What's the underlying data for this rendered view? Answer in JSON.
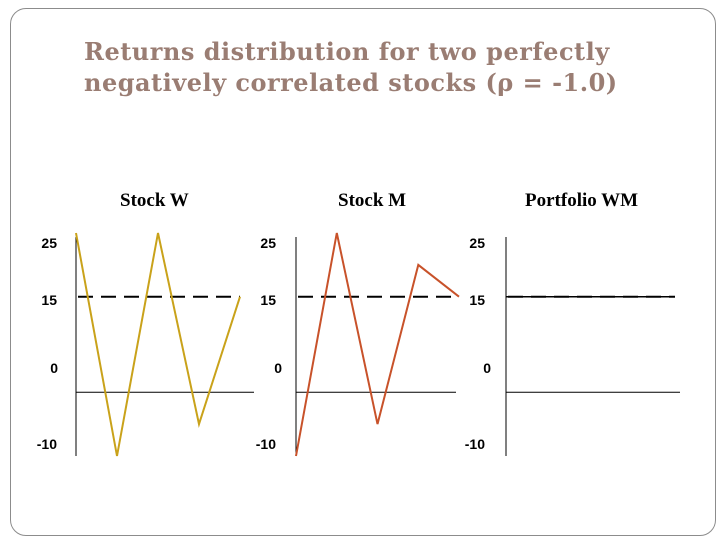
{
  "slide": {
    "title_line1": "Returns distribution for two perfectly",
    "title_line2": "negatively correlated stocks (ρ = -1.0)"
  },
  "colors": {
    "frame": "#8c8c8c",
    "title": "#9a7d73",
    "stock_w": "#c9a21a",
    "stock_m": "#c8522a",
    "portfolio": "#000000",
    "axis": "#000000"
  },
  "chart_data": [
    {
      "type": "line",
      "title": "Stock W",
      "ylim": [
        -10,
        25
      ],
      "yticks": [
        "25",
        "15",
        "0",
        "-10"
      ],
      "x": [
        0,
        1,
        2,
        3,
        4
      ],
      "series": [
        {
          "values": [
            25,
            -10,
            25,
            -5,
            15
          ]
        }
      ],
      "reference_line": {
        "y": 15,
        "style": "dashed"
      }
    },
    {
      "type": "line",
      "title": "Stock M",
      "ylim": [
        -10,
        25
      ],
      "yticks": [
        "25",
        "15",
        "0",
        "-10"
      ],
      "x": [
        0,
        1,
        2,
        3,
        4
      ],
      "series": [
        {
          "values": [
            -10,
            25,
            -5,
            20,
            15
          ]
        }
      ],
      "reference_line": {
        "y": 15,
        "style": "dashed"
      }
    },
    {
      "type": "line",
      "title": "Portfolio WM",
      "ylim": [
        -10,
        25
      ],
      "yticks": [
        "25",
        "15",
        "0",
        "-10"
      ],
      "x": [
        0,
        1,
        2,
        3,
        4
      ],
      "series": [
        {
          "values": [
            15,
            15,
            15,
            15,
            15
          ]
        }
      ],
      "reference_line": {
        "y": 15,
        "style": "dashed"
      }
    }
  ]
}
